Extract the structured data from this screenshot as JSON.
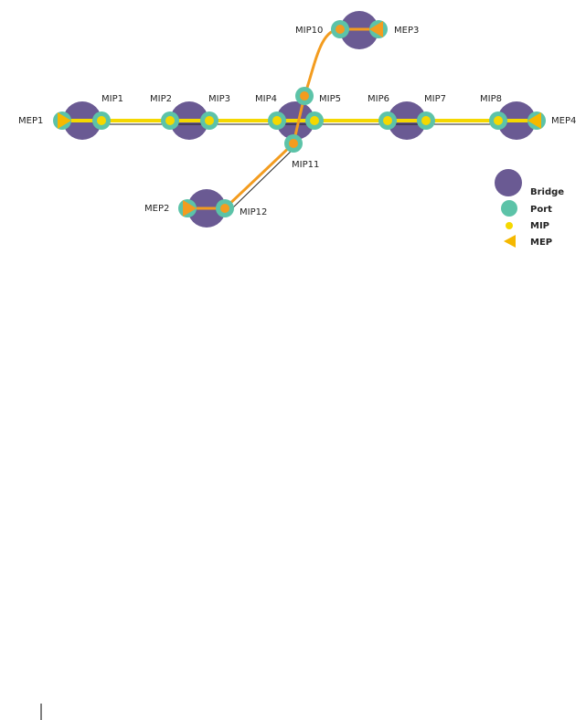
{
  "endpoints": [
    "MEP1",
    "MEP2",
    "MEP3",
    "MEP4"
  ],
  "intermediates": [
    "MIP1",
    "MIP2",
    "MIP3",
    "MIP4",
    "MIP5",
    "MIP6",
    "MIP7",
    "MIP8",
    "MIP10",
    "MIP11",
    "MIP12"
  ],
  "legend": [
    "Bridge",
    "Port",
    "MIP",
    "MEP"
  ]
}
